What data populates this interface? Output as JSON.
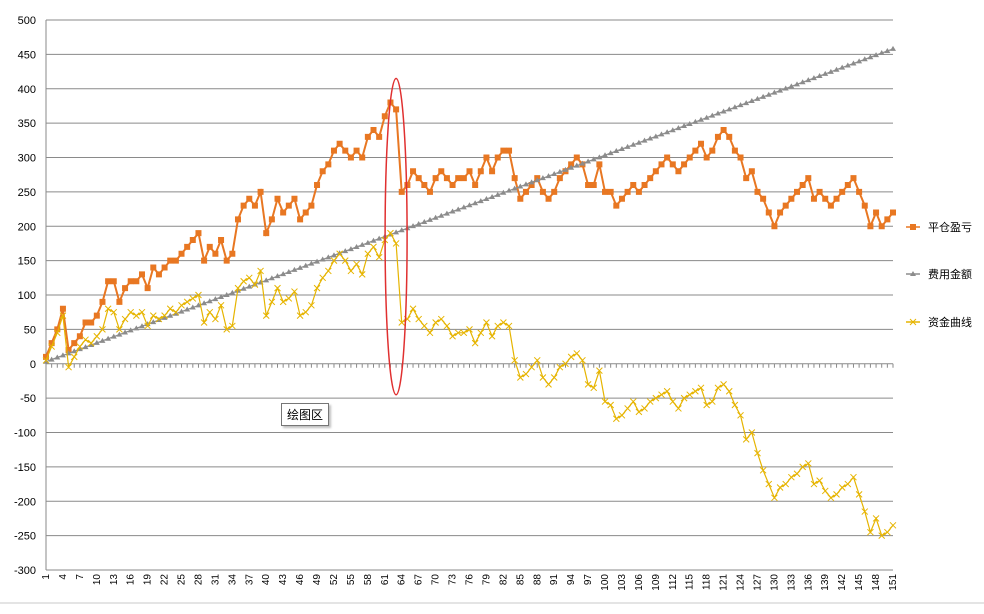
{
  "tooltip": "绘图区",
  "chart_data": {
    "type": "line",
    "ylim": [
      -300,
      500
    ],
    "yticks": [
      -300,
      -250,
      -200,
      -150,
      -100,
      -50,
      0,
      50,
      100,
      150,
      200,
      250,
      300,
      350,
      400,
      450,
      500
    ],
    "xlim": [
      1,
      151
    ],
    "xtick_step": 3,
    "grid": {
      "horizontal": true,
      "vertical": false
    },
    "legend_position": "right",
    "annotation": {
      "shape": "ellipse",
      "color": "#e03030",
      "x_center": 63,
      "y_top": 415,
      "y_bottom": -45
    },
    "series": [
      {
        "name": "平仓盈亏",
        "color": "#e87722",
        "marker": "square",
        "points": [
          [
            1,
            10
          ],
          [
            2,
            30
          ],
          [
            3,
            50
          ],
          [
            4,
            80
          ],
          [
            5,
            20
          ],
          [
            6,
            30
          ],
          [
            7,
            40
          ],
          [
            8,
            60
          ],
          [
            9,
            60
          ],
          [
            10,
            70
          ],
          [
            11,
            90
          ],
          [
            12,
            120
          ],
          [
            13,
            120
          ],
          [
            14,
            90
          ],
          [
            15,
            110
          ],
          [
            16,
            120
          ],
          [
            17,
            120
          ],
          [
            18,
            130
          ],
          [
            19,
            110
          ],
          [
            20,
            140
          ],
          [
            21,
            130
          ],
          [
            22,
            140
          ],
          [
            23,
            150
          ],
          [
            24,
            150
          ],
          [
            25,
            160
          ],
          [
            26,
            170
          ],
          [
            27,
            180
          ],
          [
            28,
            190
          ],
          [
            29,
            150
          ],
          [
            30,
            170
          ],
          [
            31,
            160
          ],
          [
            32,
            180
          ],
          [
            33,
            150
          ],
          [
            34,
            160
          ],
          [
            35,
            210
          ],
          [
            36,
            230
          ],
          [
            37,
            240
          ],
          [
            38,
            230
          ],
          [
            39,
            250
          ],
          [
            40,
            190
          ],
          [
            41,
            210
          ],
          [
            42,
            240
          ],
          [
            43,
            220
          ],
          [
            44,
            230
          ],
          [
            45,
            240
          ],
          [
            46,
            210
          ],
          [
            47,
            220
          ],
          [
            48,
            230
          ],
          [
            49,
            260
          ],
          [
            50,
            280
          ],
          [
            51,
            290
          ],
          [
            52,
            310
          ],
          [
            53,
            320
          ],
          [
            54,
            310
          ],
          [
            55,
            300
          ],
          [
            56,
            310
          ],
          [
            57,
            300
          ],
          [
            58,
            330
          ],
          [
            59,
            340
          ],
          [
            60,
            330
          ],
          [
            61,
            360
          ],
          [
            62,
            380
          ],
          [
            63,
            370
          ],
          [
            64,
            250
          ],
          [
            65,
            260
          ],
          [
            66,
            280
          ],
          [
            67,
            270
          ],
          [
            68,
            260
          ],
          [
            69,
            250
          ],
          [
            70,
            270
          ],
          [
            71,
            280
          ],
          [
            72,
            270
          ],
          [
            73,
            260
          ],
          [
            74,
            270
          ],
          [
            75,
            270
          ],
          [
            76,
            280
          ],
          [
            77,
            260
          ],
          [
            78,
            280
          ],
          [
            79,
            300
          ],
          [
            80,
            280
          ],
          [
            81,
            300
          ],
          [
            82,
            310
          ],
          [
            83,
            310
          ],
          [
            84,
            270
          ],
          [
            85,
            240
          ],
          [
            86,
            250
          ],
          [
            87,
            260
          ],
          [
            88,
            270
          ],
          [
            89,
            250
          ],
          [
            90,
            240
          ],
          [
            91,
            250
          ],
          [
            92,
            270
          ],
          [
            93,
            280
          ],
          [
            94,
            290
          ],
          [
            95,
            300
          ],
          [
            96,
            290
          ],
          [
            97,
            260
          ],
          [
            98,
            260
          ],
          [
            99,
            290
          ],
          [
            100,
            250
          ],
          [
            101,
            250
          ],
          [
            102,
            230
          ],
          [
            103,
            240
          ],
          [
            104,
            250
          ],
          [
            105,
            260
          ],
          [
            106,
            250
          ],
          [
            107,
            260
          ],
          [
            108,
            270
          ],
          [
            109,
            280
          ],
          [
            110,
            290
          ],
          [
            111,
            300
          ],
          [
            112,
            290
          ],
          [
            113,
            280
          ],
          [
            114,
            290
          ],
          [
            115,
            300
          ],
          [
            116,
            310
          ],
          [
            117,
            320
          ],
          [
            118,
            300
          ],
          [
            119,
            310
          ],
          [
            120,
            330
          ],
          [
            121,
            340
          ],
          [
            122,
            330
          ],
          [
            123,
            310
          ],
          [
            124,
            300
          ],
          [
            125,
            270
          ],
          [
            126,
            280
          ],
          [
            127,
            250
          ],
          [
            128,
            240
          ],
          [
            129,
            220
          ],
          [
            130,
            200
          ],
          [
            131,
            220
          ],
          [
            132,
            230
          ],
          [
            133,
            240
          ],
          [
            134,
            250
          ],
          [
            135,
            260
          ],
          [
            136,
            270
          ],
          [
            137,
            240
          ],
          [
            138,
            250
          ],
          [
            139,
            240
          ],
          [
            140,
            230
          ],
          [
            141,
            240
          ],
          [
            142,
            250
          ],
          [
            143,
            260
          ],
          [
            144,
            270
          ],
          [
            145,
            250
          ],
          [
            146,
            230
          ],
          [
            147,
            200
          ],
          [
            148,
            220
          ],
          [
            149,
            200
          ],
          [
            150,
            210
          ],
          [
            151,
            220
          ]
        ]
      },
      {
        "name": "费用金额",
        "color": "#8c8c8c",
        "marker": "triangle",
        "points": [
          [
            1,
            3
          ],
          [
            151,
            458
          ]
        ]
      },
      {
        "name": "资金曲线",
        "color": "#e6b400",
        "marker": "x",
        "points": [
          [
            1,
            5
          ],
          [
            2,
            25
          ],
          [
            3,
            45
          ],
          [
            4,
            70
          ],
          [
            5,
            -5
          ],
          [
            6,
            10
          ],
          [
            7,
            25
          ],
          [
            8,
            35
          ],
          [
            9,
            30
          ],
          [
            10,
            40
          ],
          [
            11,
            50
          ],
          [
            12,
            80
          ],
          [
            13,
            75
          ],
          [
            14,
            50
          ],
          [
            15,
            65
          ],
          [
            16,
            75
          ],
          [
            17,
            70
          ],
          [
            18,
            75
          ],
          [
            19,
            55
          ],
          [
            20,
            70
          ],
          [
            21,
            65
          ],
          [
            22,
            70
          ],
          [
            23,
            80
          ],
          [
            24,
            75
          ],
          [
            25,
            85
          ],
          [
            26,
            90
          ],
          [
            27,
            95
          ],
          [
            28,
            100
          ],
          [
            29,
            60
          ],
          [
            30,
            75
          ],
          [
            31,
            65
          ],
          [
            32,
            85
          ],
          [
            33,
            50
          ],
          [
            34,
            55
          ],
          [
            35,
            110
          ],
          [
            36,
            120
          ],
          [
            37,
            125
          ],
          [
            38,
            115
          ],
          [
            39,
            135
          ],
          [
            40,
            70
          ],
          [
            41,
            90
          ],
          [
            42,
            110
          ],
          [
            43,
            90
          ],
          [
            44,
            95
          ],
          [
            45,
            105
          ],
          [
            46,
            70
          ],
          [
            47,
            75
          ],
          [
            48,
            85
          ],
          [
            49,
            110
          ],
          [
            50,
            125
          ],
          [
            51,
            135
          ],
          [
            52,
            150
          ],
          [
            53,
            160
          ],
          [
            54,
            150
          ],
          [
            55,
            135
          ],
          [
            56,
            145
          ],
          [
            57,
            130
          ],
          [
            58,
            160
          ],
          [
            59,
            170
          ],
          [
            60,
            155
          ],
          [
            61,
            180
          ],
          [
            62,
            190
          ],
          [
            63,
            175
          ],
          [
            64,
            60
          ],
          [
            65,
            65
          ],
          [
            66,
            80
          ],
          [
            67,
            65
          ],
          [
            68,
            55
          ],
          [
            69,
            45
          ],
          [
            70,
            60
          ],
          [
            71,
            65
          ],
          [
            72,
            55
          ],
          [
            73,
            40
          ],
          [
            74,
            45
          ],
          [
            75,
            45
          ],
          [
            76,
            50
          ],
          [
            77,
            30
          ],
          [
            78,
            45
          ],
          [
            79,
            60
          ],
          [
            80,
            40
          ],
          [
            81,
            55
          ],
          [
            82,
            60
          ],
          [
            83,
            55
          ],
          [
            84,
            5
          ],
          [
            85,
            -20
          ],
          [
            86,
            -15
          ],
          [
            87,
            -5
          ],
          [
            88,
            5
          ],
          [
            89,
            -20
          ],
          [
            90,
            -30
          ],
          [
            91,
            -20
          ],
          [
            92,
            -5
          ],
          [
            93,
            0
          ],
          [
            94,
            10
          ],
          [
            95,
            15
          ],
          [
            96,
            5
          ],
          [
            97,
            -30
          ],
          [
            98,
            -35
          ],
          [
            99,
            -10
          ],
          [
            100,
            -55
          ],
          [
            101,
            -60
          ],
          [
            102,
            -80
          ],
          [
            103,
            -75
          ],
          [
            104,
            -65
          ],
          [
            105,
            -55
          ],
          [
            106,
            -70
          ],
          [
            107,
            -65
          ],
          [
            108,
            -55
          ],
          [
            109,
            -50
          ],
          [
            110,
            -45
          ],
          [
            111,
            -40
          ],
          [
            112,
            -55
          ],
          [
            113,
            -65
          ],
          [
            114,
            -50
          ],
          [
            115,
            -45
          ],
          [
            116,
            -40
          ],
          [
            117,
            -35
          ],
          [
            118,
            -60
          ],
          [
            119,
            -55
          ],
          [
            120,
            -35
          ],
          [
            121,
            -30
          ],
          [
            122,
            -40
          ],
          [
            123,
            -60
          ],
          [
            124,
            -75
          ],
          [
            125,
            -110
          ],
          [
            126,
            -100
          ],
          [
            127,
            -130
          ],
          [
            128,
            -155
          ],
          [
            129,
            -175
          ],
          [
            130,
            -195
          ],
          [
            131,
            -180
          ],
          [
            132,
            -175
          ],
          [
            133,
            -165
          ],
          [
            134,
            -160
          ],
          [
            135,
            -150
          ],
          [
            136,
            -145
          ],
          [
            137,
            -175
          ],
          [
            138,
            -170
          ],
          [
            139,
            -185
          ],
          [
            140,
            -195
          ],
          [
            141,
            -190
          ],
          [
            142,
            -180
          ],
          [
            143,
            -175
          ],
          [
            144,
            -165
          ],
          [
            145,
            -190
          ],
          [
            146,
            -215
          ],
          [
            147,
            -245
          ],
          [
            148,
            -225
          ],
          [
            149,
            -250
          ],
          [
            150,
            -245
          ],
          [
            151,
            -235
          ]
        ]
      }
    ]
  }
}
